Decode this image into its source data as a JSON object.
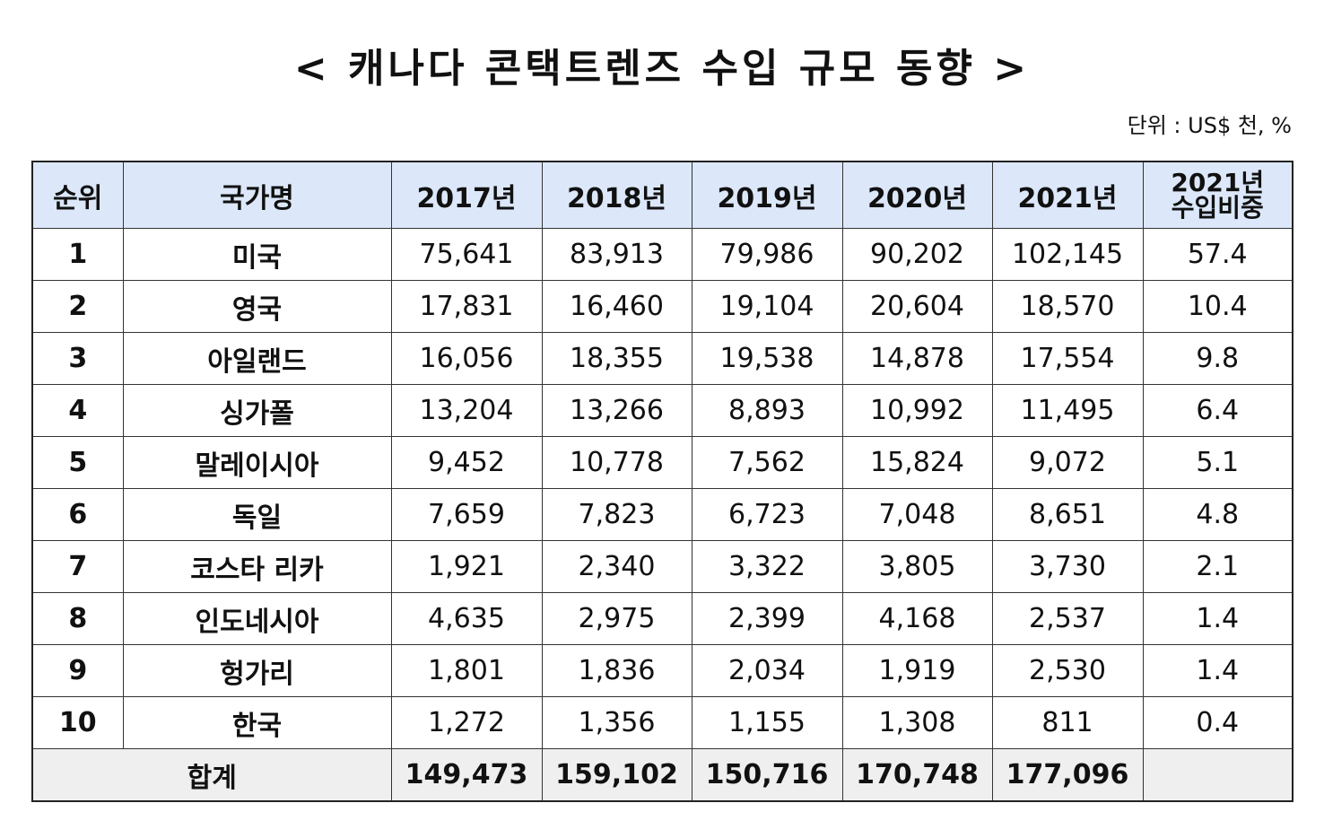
{
  "title": "< 캐나다 콘택트렌즈 수입 규모 동향 >",
  "unit": "단위 : US$ 천, %",
  "chart_data": {
    "type": "table",
    "title": "< 캐나다 콘택트렌즈 수입 규모 동향 >",
    "unit": "단위 : US$ 천, %",
    "columns": [
      "순위",
      "국가명",
      "2017년",
      "2018년",
      "2019년",
      "2020년",
      "2021년",
      "2021년 수입비중"
    ],
    "share_header": [
      "2021년",
      "수입비중"
    ],
    "rows": [
      [
        "1",
        "미국",
        "75,641",
        "83,913",
        "79,986",
        "90,202",
        "102,145",
        "57.4"
      ],
      [
        "2",
        "영국",
        "17,831",
        "16,460",
        "19,104",
        "20,604",
        "18,570",
        "10.4"
      ],
      [
        "3",
        "아일랜드",
        "16,056",
        "18,355",
        "19,538",
        "14,878",
        "17,554",
        "9.8"
      ],
      [
        "4",
        "싱가폴",
        "13,204",
        "13,266",
        "8,893",
        "10,992",
        "11,495",
        "6.4"
      ],
      [
        "5",
        "말레이시아",
        "9,452",
        "10,778",
        "7,562",
        "15,824",
        "9,072",
        "5.1"
      ],
      [
        "6",
        "독일",
        "7,659",
        "7,823",
        "6,723",
        "7,048",
        "8,651",
        "4.8"
      ],
      [
        "7",
        "코스타 리카",
        "1,921",
        "2,340",
        "3,322",
        "3,805",
        "3,730",
        "2.1"
      ],
      [
        "8",
        "인도네시아",
        "4,635",
        "2,975",
        "2,399",
        "4,168",
        "2,537",
        "1.4"
      ],
      [
        "9",
        "헝가리",
        "1,801",
        "1,836",
        "2,034",
        "1,919",
        "2,530",
        "1.4"
      ],
      [
        "10",
        "한국",
        "1,272",
        "1,356",
        "1,155",
        "1,308",
        "811",
        "0.4"
      ]
    ],
    "total": {
      "label": "합계",
      "values": [
        "149,473",
        "159,102",
        "150,716",
        "170,748",
        "177,096",
        ""
      ]
    }
  }
}
